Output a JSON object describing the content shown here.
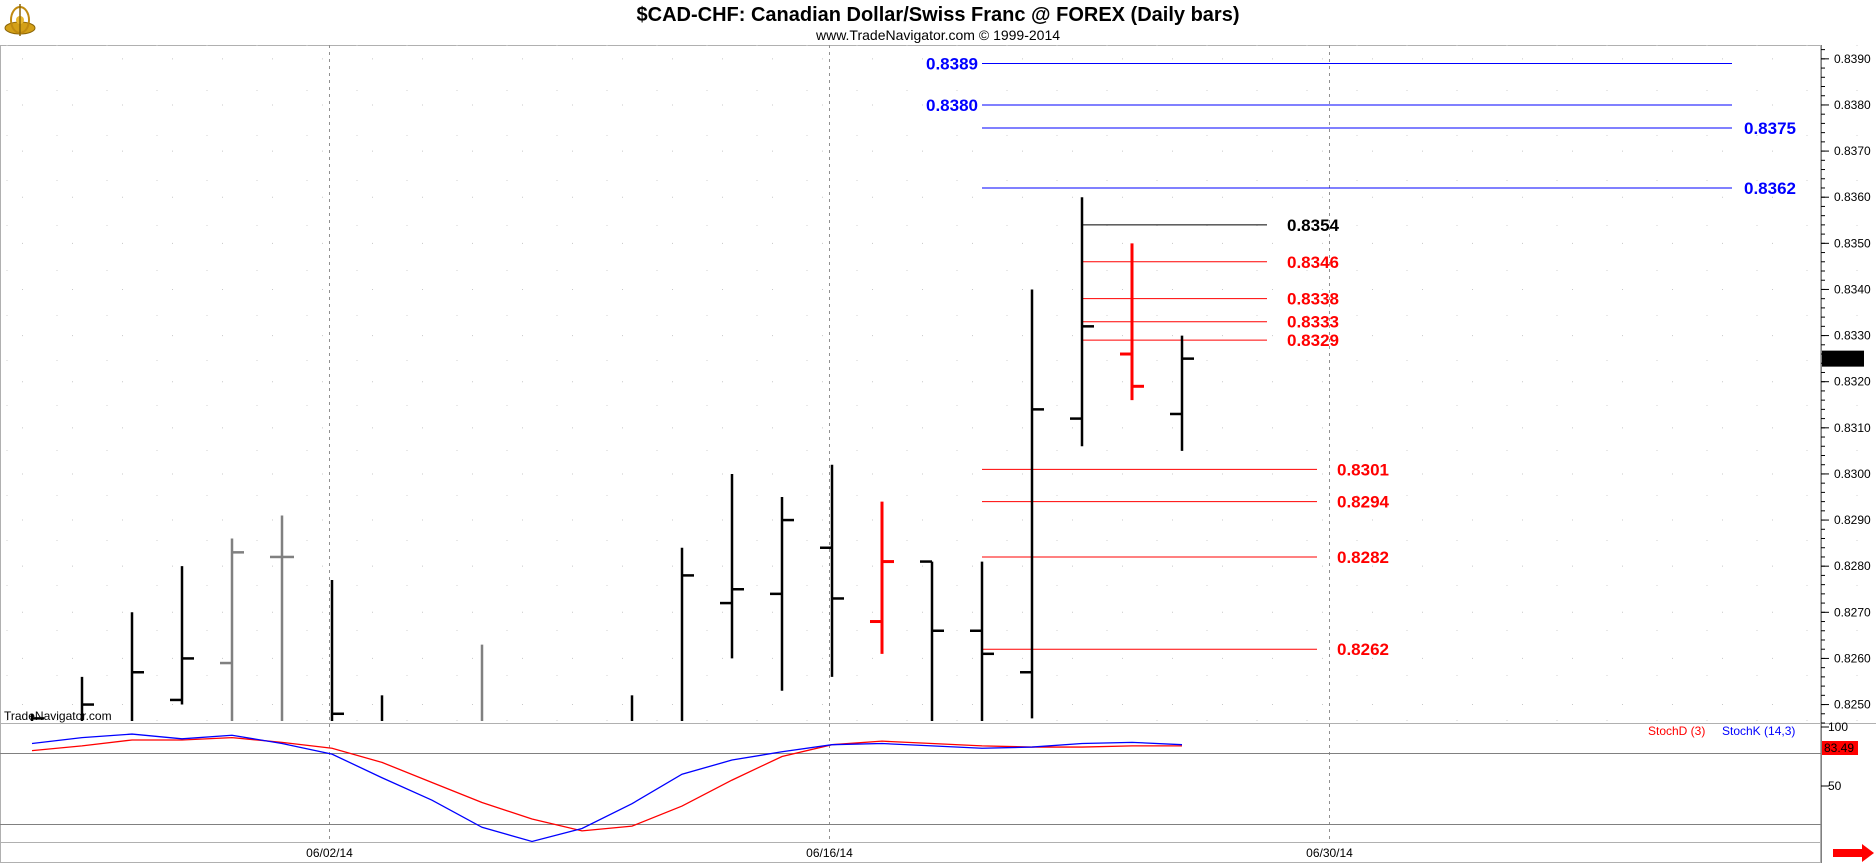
{
  "header": {
    "title": "$CAD-CHF:  Canadian Dollar/Swiss Franc @ FOREX  (Daily bars)",
    "subtitle": "www.TradeNavigator.com © 1999-2014",
    "watermark": "TradeNavigator.com",
    "logo_icon": "gyroscope-logo-icon"
  },
  "chart_data": [
    {
      "type": "ohlc",
      "x_axis": {
        "ticks": [
          "06/02/14",
          "06/16/14",
          "06/30/14"
        ],
        "tick_bar_index": [
          6,
          16,
          26
        ]
      },
      "y_axis": {
        "ylim": [
          0.8246,
          0.8393
        ],
        "ticks": [
          "0.8250",
          "0.8260",
          "0.8270",
          "0.8280",
          "0.8290",
          "0.8300",
          "0.8310",
          "0.8320",
          "0.8330",
          "0.8340",
          "0.8350",
          "0.8360",
          "0.8370",
          "0.8380",
          "0.8390"
        ],
        "last_price_label": "0.8325"
      },
      "grid": "dotted",
      "colors": {
        "up": "#000000",
        "down": "#ff0000",
        "inactive": "#808080"
      },
      "bars": [
        {
          "i": 0,
          "high": 0.8248,
          "low": 0.8246,
          "close": 0.8247,
          "color": "#000000"
        },
        {
          "i": 1,
          "high": 0.8256,
          "low": 0.8246,
          "close": 0.825,
          "color": "#000000"
        },
        {
          "i": 2,
          "high": 0.827,
          "low": 0.8246,
          "close": 0.8257,
          "color": "#000000"
        },
        {
          "i": 3,
          "high": 0.828,
          "low": 0.825,
          "open": 0.8251,
          "close": 0.826,
          "color": "#000000"
        },
        {
          "i": 4,
          "high": 0.8286,
          "low": 0.8246,
          "open": 0.8259,
          "close": 0.8283,
          "color": "#808080"
        },
        {
          "i": 5,
          "high": 0.8291,
          "low": 0.8246,
          "open": 0.8282,
          "close": 0.8282,
          "color": "#808080"
        },
        {
          "i": 6,
          "high": 0.8277,
          "low": 0.8246,
          "close": 0.8248,
          "color": "#000000"
        },
        {
          "i": 7,
          "high": 0.8252,
          "low": 0.8246,
          "color": "#000000"
        },
        {
          "i": 9,
          "high": 0.8263,
          "low": 0.8246,
          "color": "#808080"
        },
        {
          "i": 12,
          "high": 0.8252,
          "low": 0.8246,
          "color": "#000000"
        },
        {
          "i": 13,
          "high": 0.8284,
          "low": 0.8246,
          "close": 0.8278,
          "color": "#000000"
        },
        {
          "i": 14,
          "high": 0.83,
          "low": 0.826,
          "open": 0.8272,
          "close": 0.8275,
          "color": "#000000"
        },
        {
          "i": 15,
          "high": 0.8295,
          "low": 0.8253,
          "open": 0.8274,
          "close": 0.829,
          "color": "#000000"
        },
        {
          "i": 16,
          "high": 0.8302,
          "low": 0.8256,
          "open": 0.8284,
          "close": 0.8273,
          "color": "#000000"
        },
        {
          "i": 17,
          "high": 0.8294,
          "low": 0.8261,
          "open": 0.8268,
          "close": 0.8281,
          "color": "#ff0000"
        },
        {
          "i": 18,
          "high": 0.8281,
          "low": 0.8246,
          "open": 0.8281,
          "close": 0.8266,
          "color": "#000000"
        },
        {
          "i": 19,
          "high": 0.8281,
          "low": 0.8246,
          "open": 0.8266,
          "close": 0.8261,
          "color": "#000000"
        },
        {
          "i": 20,
          "high": 0.834,
          "low": 0.8247,
          "open": 0.8257,
          "close": 0.8314,
          "color": "#000000"
        },
        {
          "i": 21,
          "high": 0.836,
          "low": 0.8306,
          "open": 0.8312,
          "close": 0.8332,
          "color": "#000000"
        },
        {
          "i": 22,
          "high": 0.835,
          "low": 0.8316,
          "open": 0.8326,
          "close": 0.8319,
          "color": "#ff0000"
        },
        {
          "i": 23,
          "high": 0.833,
          "low": 0.8305,
          "open": 0.8313,
          "close": 0.8325,
          "color": "#000000"
        }
      ],
      "levels": [
        {
          "label": "0.8389",
          "value": 0.8389,
          "color": "#0000ff",
          "from_bar": 19,
          "to_bar": 34.0,
          "label_side": "left"
        },
        {
          "label": "0.8380",
          "value": 0.838,
          "color": "#0000ff",
          "from_bar": 19,
          "to_bar": 34.0,
          "label_side": "left"
        },
        {
          "label": "0.8375",
          "value": 0.8375,
          "color": "#0000ff",
          "from_bar": 19,
          "to_bar": 34.0,
          "label_side": "right"
        },
        {
          "label": "0.8362",
          "value": 0.8362,
          "color": "#0000ff",
          "from_bar": 19,
          "to_bar": 34.0,
          "label_side": "right"
        },
        {
          "label": "0.8354",
          "value": 0.8354,
          "color": "#000000",
          "from_bar": 21,
          "to_bar": 24.7,
          "label_side": "right"
        },
        {
          "label": "0.8346",
          "value": 0.8346,
          "color": "#ff0000",
          "from_bar": 21,
          "to_bar": 24.7,
          "label_side": "right"
        },
        {
          "label": "0.8338",
          "value": 0.8338,
          "color": "#ff0000",
          "from_bar": 21,
          "to_bar": 24.7,
          "label_side": "right"
        },
        {
          "label": "0.8333",
          "value": 0.8333,
          "color": "#ff0000",
          "from_bar": 21,
          "to_bar": 24.7,
          "label_side": "right"
        },
        {
          "label": "0.8329",
          "value": 0.8329,
          "color": "#ff0000",
          "from_bar": 21,
          "to_bar": 24.7,
          "label_side": "right"
        },
        {
          "label": "0.8301",
          "value": 0.8301,
          "color": "#ff0000",
          "from_bar": 19,
          "to_bar": 25.7,
          "label_side": "right"
        },
        {
          "label": "0.8294",
          "value": 0.8294,
          "color": "#ff0000",
          "from_bar": 19,
          "to_bar": 25.7,
          "label_side": "right"
        },
        {
          "label": "0.8282",
          "value": 0.8282,
          "color": "#ff0000",
          "from_bar": 19,
          "to_bar": 25.7,
          "label_side": "right"
        },
        {
          "label": "0.8262",
          "value": 0.8262,
          "color": "#ff0000",
          "from_bar": 19,
          "to_bar": 25.7,
          "label_side": "right"
        }
      ]
    },
    {
      "type": "line",
      "y_axis": {
        "ylim": [
          0,
          100
        ],
        "ticks": [
          "100",
          "50"
        ],
        "last_value_label": "83.49"
      },
      "legend": [
        "StochD (3)",
        "StochK (14,3)"
      ],
      "series": [
        {
          "name": "StochD (3)",
          "color": "#ff0000",
          "x": [
            0,
            1,
            2,
            3,
            4,
            5,
            6,
            7,
            8,
            9,
            10,
            11,
            12,
            13,
            14,
            15,
            16,
            17,
            18,
            19,
            20,
            21,
            22,
            23
          ],
          "values": [
            80,
            84,
            89,
            89,
            91,
            87,
            82,
            70,
            53,
            36,
            22,
            12,
            16,
            33,
            55,
            75,
            85,
            88,
            86,
            84,
            83,
            83,
            84,
            84
          ]
        },
        {
          "name": "StochK (14,3)",
          "color": "#0000ff",
          "x": [
            0,
            1,
            2,
            3,
            4,
            5,
            6,
            7,
            8,
            9,
            10,
            11,
            12,
            13,
            14,
            15,
            16,
            17,
            18,
            19,
            20,
            21,
            22,
            23
          ],
          "values": [
            86,
            91,
            94,
            90,
            93,
            86,
            77,
            57,
            38,
            15,
            3,
            14,
            35,
            60,
            72,
            79,
            85,
            86,
            84,
            82,
            83,
            86,
            87,
            85
          ]
        }
      ]
    }
  ]
}
